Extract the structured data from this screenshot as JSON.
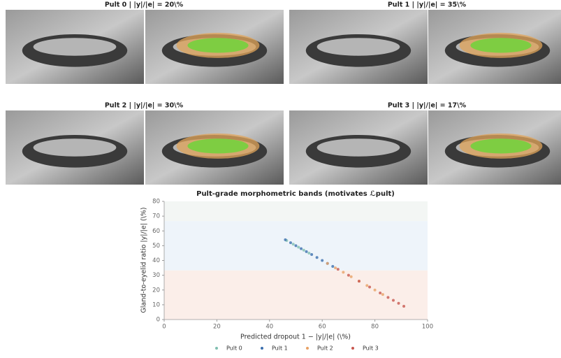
{
  "panels": [
    {
      "title": "Pult 0  |  |y|/|e| = 20\\%"
    },
    {
      "title": "Pult 1  |  |y|/|e| = 35\\%"
    },
    {
      "title": "Pult 2  |  |y|/|e| = 30\\%"
    },
    {
      "title": "Pult 3  |  |y|/|e| = 17\\%"
    }
  ],
  "chart_data": {
    "type": "scatter",
    "title": "Pult-grade morphometric bands (motivates ℒpult)",
    "x_label": "Predicted dropout 1 − |y|/|e| (\\%)",
    "y_label": "Gland-to-eyelid ratio |y|/|e| (\\%)",
    "xlim": [
      0,
      100
    ],
    "ylim": [
      0,
      80
    ],
    "xticks": [
      0,
      20,
      40,
      60,
      80,
      100
    ],
    "yticks": [
      0,
      10,
      20,
      30,
      40,
      50,
      60,
      70,
      80
    ],
    "bands": [
      {
        "range": [
          0,
          33.3
        ],
        "color": "#fbeee9"
      },
      {
        "range": [
          33.3,
          66.7
        ],
        "color": "#eef4fa"
      },
      {
        "range": [
          66.7,
          80
        ],
        "color": "#f3f6f4"
      }
    ],
    "series": [
      {
        "name": "Pult 0",
        "color": "#7fbfb0",
        "x": [
          46.5,
          49,
          51,
          53,
          55
        ],
        "y": [
          53.5,
          51,
          49,
          47,
          45
        ]
      },
      {
        "name": "Pult 1",
        "color": "#3b6fae",
        "x": [
          46,
          48,
          50,
          52,
          54,
          56,
          58,
          60,
          62,
          64
        ],
        "y": [
          54,
          52,
          50,
          48,
          46,
          44,
          42,
          40,
          38,
          36
        ]
      },
      {
        "name": "Pult 2",
        "color": "#e9a266",
        "x": [
          62,
          65,
          68,
          71,
          74,
          77,
          80,
          83
        ],
        "y": [
          38,
          35,
          32,
          29,
          26,
          23,
          20,
          17
        ]
      },
      {
        "name": "Pult 3",
        "color": "#c8574f",
        "x": [
          66,
          70,
          74,
          78,
          82,
          85,
          87,
          89,
          91
        ],
        "y": [
          34,
          30,
          26,
          22,
          18,
          15,
          13,
          11,
          9
        ]
      }
    ]
  }
}
